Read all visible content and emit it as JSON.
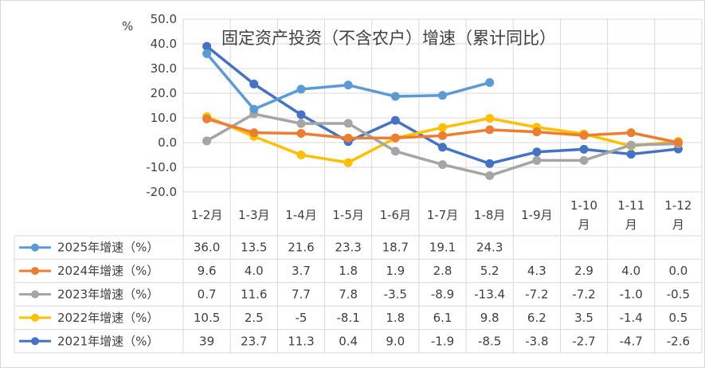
{
  "chart_data": {
    "type": "line",
    "title": "固定资产投资（不含农户）增速（累计同比）",
    "ylabel": "%",
    "ylim": [
      -20,
      50
    ],
    "yticks": [
      "50.0",
      "40.0",
      "30.0",
      "20.0",
      "10.0",
      "0.0",
      "-10.0",
      "-20.0"
    ],
    "categories": [
      "1-2月",
      "1-3月",
      "1-4月",
      "1-5月",
      "1-6月",
      "1-7月",
      "1-8月",
      "1-9月",
      "1-10月",
      "1-11月",
      "1-12月"
    ],
    "legend_placement": "data-table",
    "grid": true,
    "series": [
      {
        "name": "2025年增速（%）",
        "color": "#5b9bd5",
        "values": [
          36.0,
          13.5,
          21.6,
          23.3,
          18.7,
          19.1,
          24.3,
          null,
          null,
          null,
          null
        ],
        "labels": [
          "36.0",
          "13.5",
          "21.6",
          "23.3",
          "18.7",
          "19.1",
          "24.3",
          "",
          "",
          "",
          ""
        ]
      },
      {
        "name": "2024年增速（%）",
        "color": "#ed7d31",
        "values": [
          9.6,
          4.0,
          3.7,
          1.8,
          1.9,
          2.8,
          5.2,
          4.3,
          2.9,
          4.0,
          0.0
        ],
        "labels": [
          "9.6",
          "4.0",
          "3.7",
          "1.8",
          "1.9",
          "2.8",
          "5.2",
          "4.3",
          "2.9",
          "4.0",
          "0.0"
        ]
      },
      {
        "name": "2023年增速（%）",
        "color": "#a5a5a5",
        "values": [
          0.7,
          11.6,
          7.7,
          7.8,
          -3.5,
          -8.9,
          -13.4,
          -7.2,
          -7.2,
          -1.0,
          -0.5
        ],
        "labels": [
          "0.7",
          "11.6",
          "7.7",
          "7.8",
          "-3.5",
          "-8.9",
          "-13.4",
          "-7.2",
          "-7.2",
          "-1.0",
          "-0.5"
        ]
      },
      {
        "name": "2022年增速（%）",
        "color": "#ffc000",
        "values": [
          10.5,
          2.5,
          -5,
          -8.1,
          1.8,
          6.1,
          9.8,
          6.2,
          3.5,
          -1.4,
          0.5
        ],
        "labels": [
          "10.5",
          "2.5",
          "-5",
          "-8.1",
          "1.8",
          "6.1",
          "9.8",
          "6.2",
          "3.5",
          "-1.4",
          "0.5"
        ]
      },
      {
        "name": "2021年增速（%）",
        "color": "#4472c4",
        "values": [
          39,
          23.7,
          11.3,
          0.4,
          9.0,
          -1.9,
          -8.5,
          -3.8,
          -2.7,
          -4.7,
          -2.6
        ],
        "labels": [
          "39",
          "23.7",
          "11.3",
          "0.4",
          "9.0",
          "-1.9",
          "-8.5",
          "-3.8",
          "-2.7",
          "-4.7",
          "-2.6"
        ]
      }
    ]
  }
}
